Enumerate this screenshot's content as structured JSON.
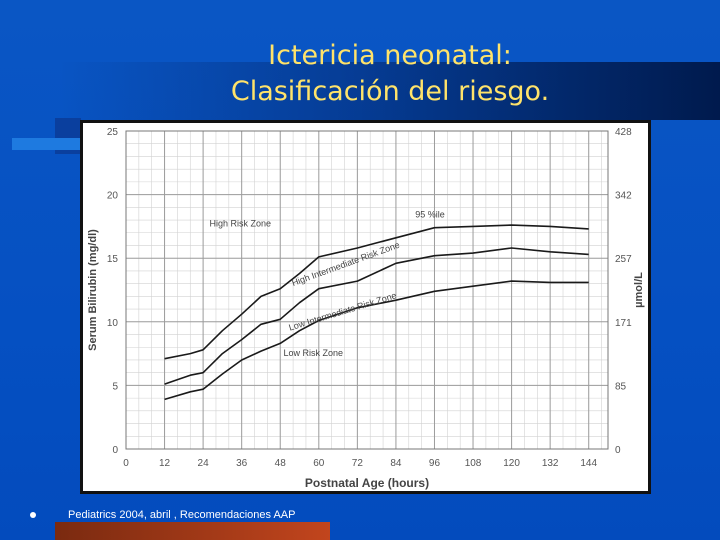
{
  "slide": {
    "title_line1": "Ictericia neonatal:",
    "title_line2": "Clasificación del riesgo.",
    "footer": "Pediatrics 2004, abril , Recomendaciones AAP"
  },
  "colors": {
    "background": "#0550c2",
    "title": "#ffe36a",
    "chart_bg": "#ffffff",
    "curve": "#1a1a1a",
    "accent_bar": "#c2451d"
  },
  "chart_data": {
    "type": "line",
    "xlabel": "Postnatal Age (hours)",
    "ylabel": "Serum Bilirubin (mg/dl)",
    "y2label": "µmol/L",
    "xlim": [
      0,
      150
    ],
    "ylim": [
      0,
      25
    ],
    "xticks": [
      0,
      12,
      24,
      36,
      48,
      60,
      72,
      84,
      96,
      108,
      120,
      132,
      144
    ],
    "yticks": [
      0,
      5,
      10,
      15,
      20,
      25
    ],
    "y2ticks": [
      {
        "label": "0",
        "y": 0
      },
      {
        "label": "85",
        "y": 5
      },
      {
        "label": "171",
        "y": 10
      },
      {
        "label": "257",
        "y": 15
      },
      {
        "label": "342",
        "y": 20
      },
      {
        "label": "428",
        "y": 25
      }
    ],
    "grid": true,
    "series": [
      {
        "label": "95 %ile",
        "x": [
          12,
          20,
          24,
          30,
          36,
          42,
          48,
          54,
          60,
          72,
          84,
          96,
          108,
          120,
          132,
          144
        ],
        "y": [
          7.1,
          7.5,
          7.8,
          9.3,
          10.6,
          12.0,
          12.6,
          13.8,
          15.1,
          15.8,
          16.6,
          17.4,
          17.5,
          17.6,
          17.5,
          17.3
        ]
      },
      {
        "x": [
          12,
          20,
          24,
          30,
          36,
          42,
          48,
          54,
          60,
          72,
          84,
          96,
          108,
          120,
          132,
          144
        ],
        "y": [
          5.1,
          5.8,
          6.0,
          7.5,
          8.6,
          9.8,
          10.2,
          11.5,
          12.6,
          13.2,
          14.6,
          15.2,
          15.4,
          15.8,
          15.5,
          15.3
        ]
      },
      {
        "x": [
          12,
          20,
          24,
          30,
          36,
          42,
          48,
          54,
          60,
          72,
          84,
          96,
          108,
          120,
          132,
          144
        ],
        "y": [
          3.9,
          4.5,
          4.7,
          5.9,
          7.0,
          7.7,
          8.3,
          9.3,
          10.1,
          11.1,
          11.7,
          12.4,
          12.8,
          13.2,
          13.1,
          13.1
        ]
      }
    ],
    "annotations": [
      {
        "text": "High Risk Zone",
        "x": 26,
        "y": 17.5,
        "rotate": 0
      },
      {
        "text": "95 %ile",
        "x": 90,
        "y": 18.2,
        "rotate": 0
      },
      {
        "text": "High Intermediate Risk Zone",
        "x": 52,
        "y": 12.8,
        "rotate": -20
      },
      {
        "text": "Low Intermediate Risk Zone",
        "x": 51,
        "y": 9.3,
        "rotate": -17
      },
      {
        "text": "Low Risk Zone",
        "x": 49,
        "y": 7.3,
        "rotate": 0
      }
    ]
  }
}
